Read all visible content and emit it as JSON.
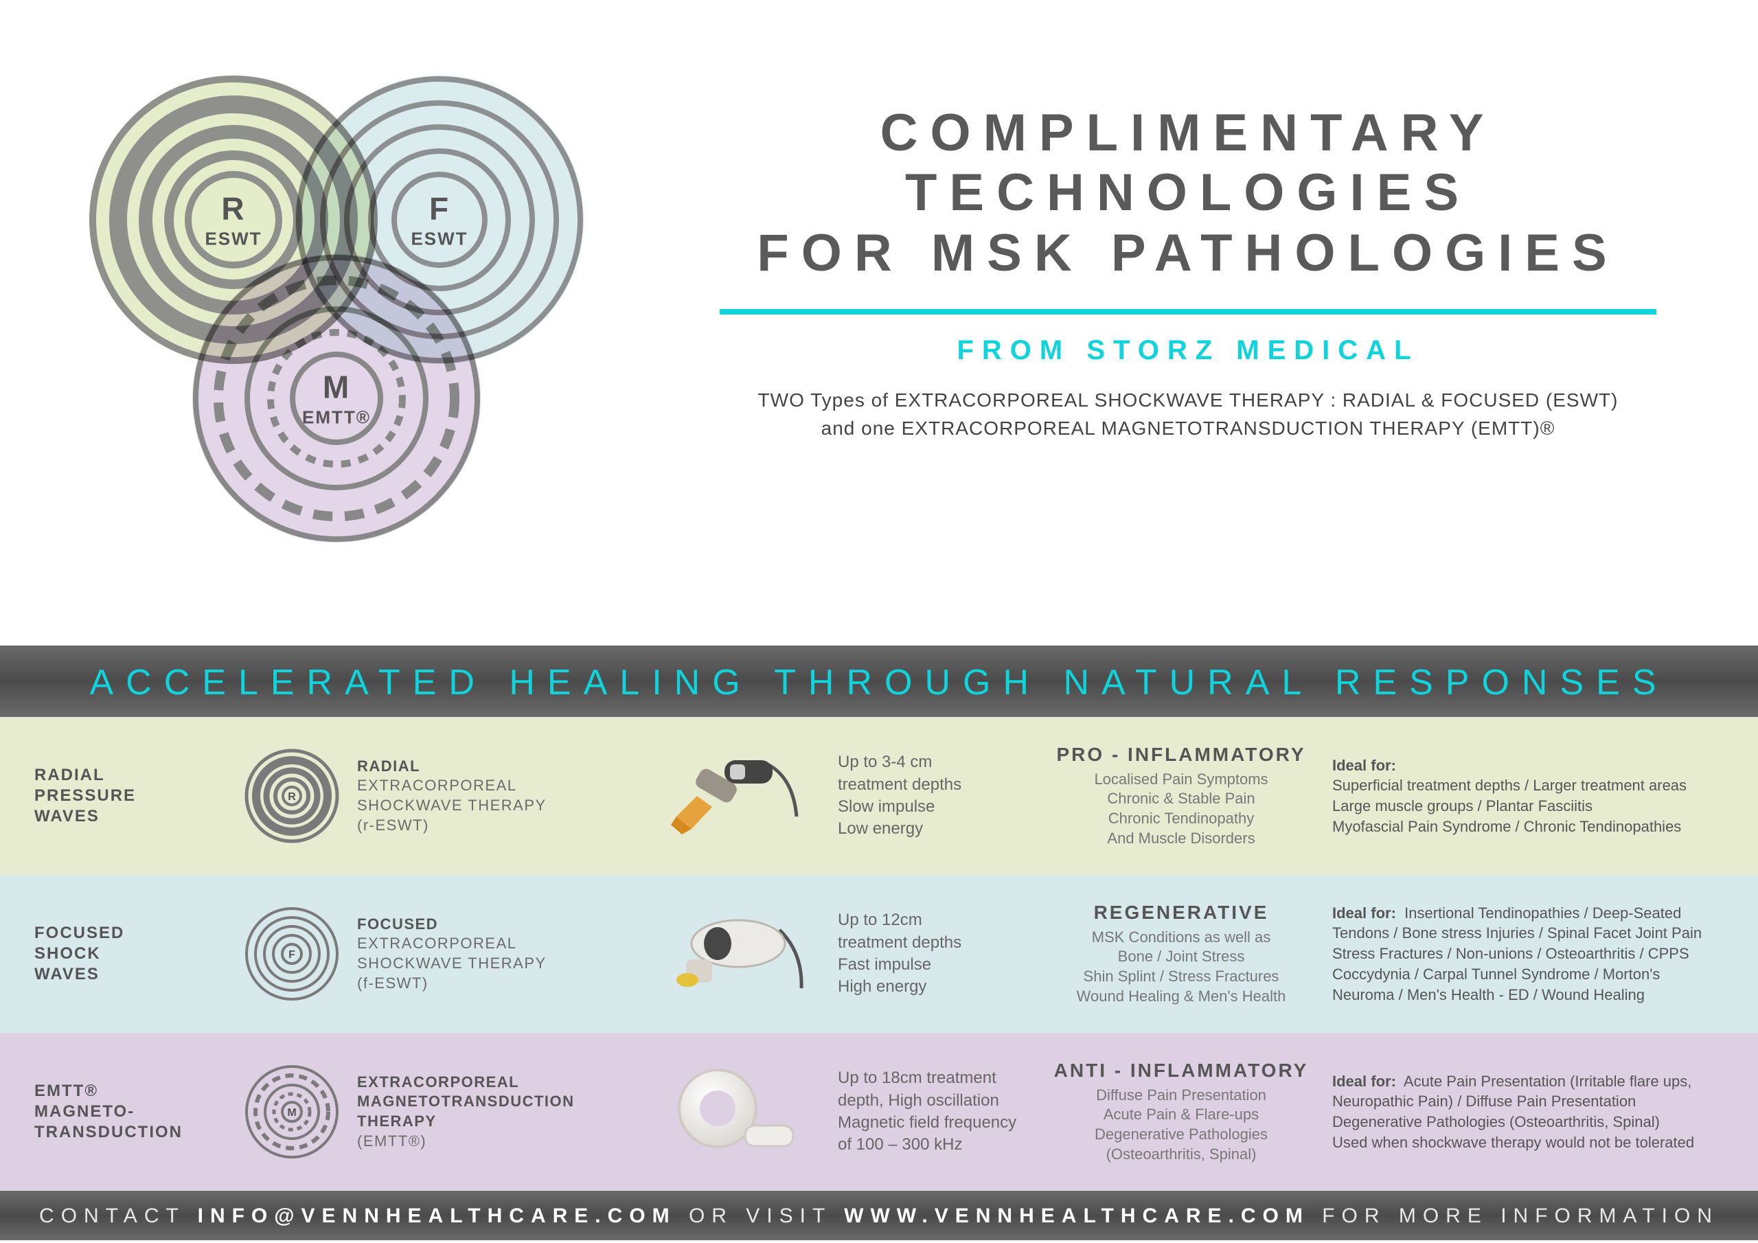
{
  "colors": {
    "accent": "#11d3db",
    "text": "#555555",
    "muted": "#777777",
    "banner_bg_top": "#6a6a6a",
    "banner_bg_mid": "#4b4b4b",
    "row_green": "#e7ecd0",
    "row_blue": "#d7e9ea",
    "row_purple": "#ddd0e2",
    "venn_green_fill": "#dce6b8",
    "venn_blue_fill": "#cfe6e9",
    "venn_purple_fill": "#dccbe3",
    "ring_stroke": "#808080"
  },
  "venn": {
    "circles": [
      {
        "id": "r",
        "letter": "R",
        "sub": "ESWT",
        "fill": "#dce6b8"
      },
      {
        "id": "f",
        "letter": "F",
        "sub": "ESWT",
        "fill": "#cfe6e9"
      },
      {
        "id": "m",
        "letter": "M",
        "sub": "EMTT®",
        "fill": "#dccbe3"
      }
    ]
  },
  "header": {
    "title_line1": "COMPLIMENTARY",
    "title_line2": "TECHNOLOGIES",
    "title_line3": "FOR MSK PATHOLOGIES",
    "from": "FROM STORZ MEDICAL",
    "desc_line1": "TWO Types of EXTRACORPOREAL SHOCKWAVE THERAPY : RADIAL & FOCUSED (ESWT)",
    "desc_line2": "and one EXTRACORPOREAL MAGNETOTRANSDUCTION THERAPY (EMTT)®"
  },
  "banner": "ACCELERATED HEALING THROUGH NATURAL RESPONSES",
  "rows": [
    {
      "bg": "green",
      "label": "RADIAL\nPRESSURE\nWAVES",
      "ring_letter": "R",
      "therapy_bold": "RADIAL",
      "therapy_rest": "EXTRACORPOREAL\nSHOCKWAVE THERAPY\n(r-ESWT)",
      "specs": "Up to 3-4 cm\ntreatment depths\nSlow impulse\nLow energy",
      "category_title": "PRO - INFLAMMATORY",
      "category_body": "Localised Pain Symptoms\nChronic & Stable Pain\nChronic Tendinopathy\nAnd Muscle Disorders",
      "ideal_label": "Ideal for:",
      "ideal_body": "Superficial treatment depths / Larger treatment areas\nLarge muscle groups / Plantar Fasciitis\nMyofascial Pain Syndrome / Chronic Tendinopathies"
    },
    {
      "bg": "blue",
      "label": "FOCUSED\nSHOCK\nWAVES",
      "ring_letter": "F",
      "therapy_bold": "FOCUSED",
      "therapy_rest": "EXTRACORPOREAL\nSHOCKWAVE THERAPY\n(f-ESWT)",
      "specs": "Up to 12cm\ntreatment depths\nFast impulse\nHigh energy",
      "category_title": "REGENERATIVE",
      "category_body": "MSK Conditions as well as\nBone / Joint Stress\nShin Splint / Stress Fractures\nWound Healing & Men's Health",
      "ideal_label": "Ideal for:",
      "ideal_body": "Insertional Tendinopathies / Deep-Seated\nTendons / Bone stress Injuries / Spinal Facet Joint Pain\nStress Fractures / Non-unions / Osteoarthritis / CPPS\nCoccydynia / Carpal Tunnel Syndrome / Morton's\nNeuroma / Men's Health - ED / Wound Healing"
    },
    {
      "bg": "purple",
      "label": "EMTT®\nMAGNETO-\nTRANSDUCTION",
      "ring_letter": "M",
      "therapy_bold": "EXTRACORPOREAL\nMAGNETOTRANSDUCTION\nTHERAPY",
      "therapy_rest": "(EMTT®)",
      "specs": "Up to 18cm treatment\ndepth, High oscillation\nMagnetic field frequency\nof 100 – 300 kHz",
      "category_title": "ANTI - INFLAMMATORY",
      "category_body": "Diffuse Pain Presentation\nAcute Pain & Flare-ups\nDegenerative Pathologies\n(Osteoarthritis, Spinal)",
      "ideal_label": "Ideal for:",
      "ideal_body": "Acute Pain Presentation (Irritable flare ups,\nNeuropathic Pain) / Diffuse Pain Presentation\nDegenerative Pathologies (Osteoarthritis, Spinal)\nUsed when shockwave therapy would not be tolerated"
    }
  ],
  "footer": {
    "pre": "CONTACT ",
    "email": "INFO@VENNHEALTHCARE.COM",
    "mid": " OR VISIT ",
    "url": "WWW.VENNHEALTHCARE.COM",
    "post": " FOR MORE INFORMATION"
  }
}
